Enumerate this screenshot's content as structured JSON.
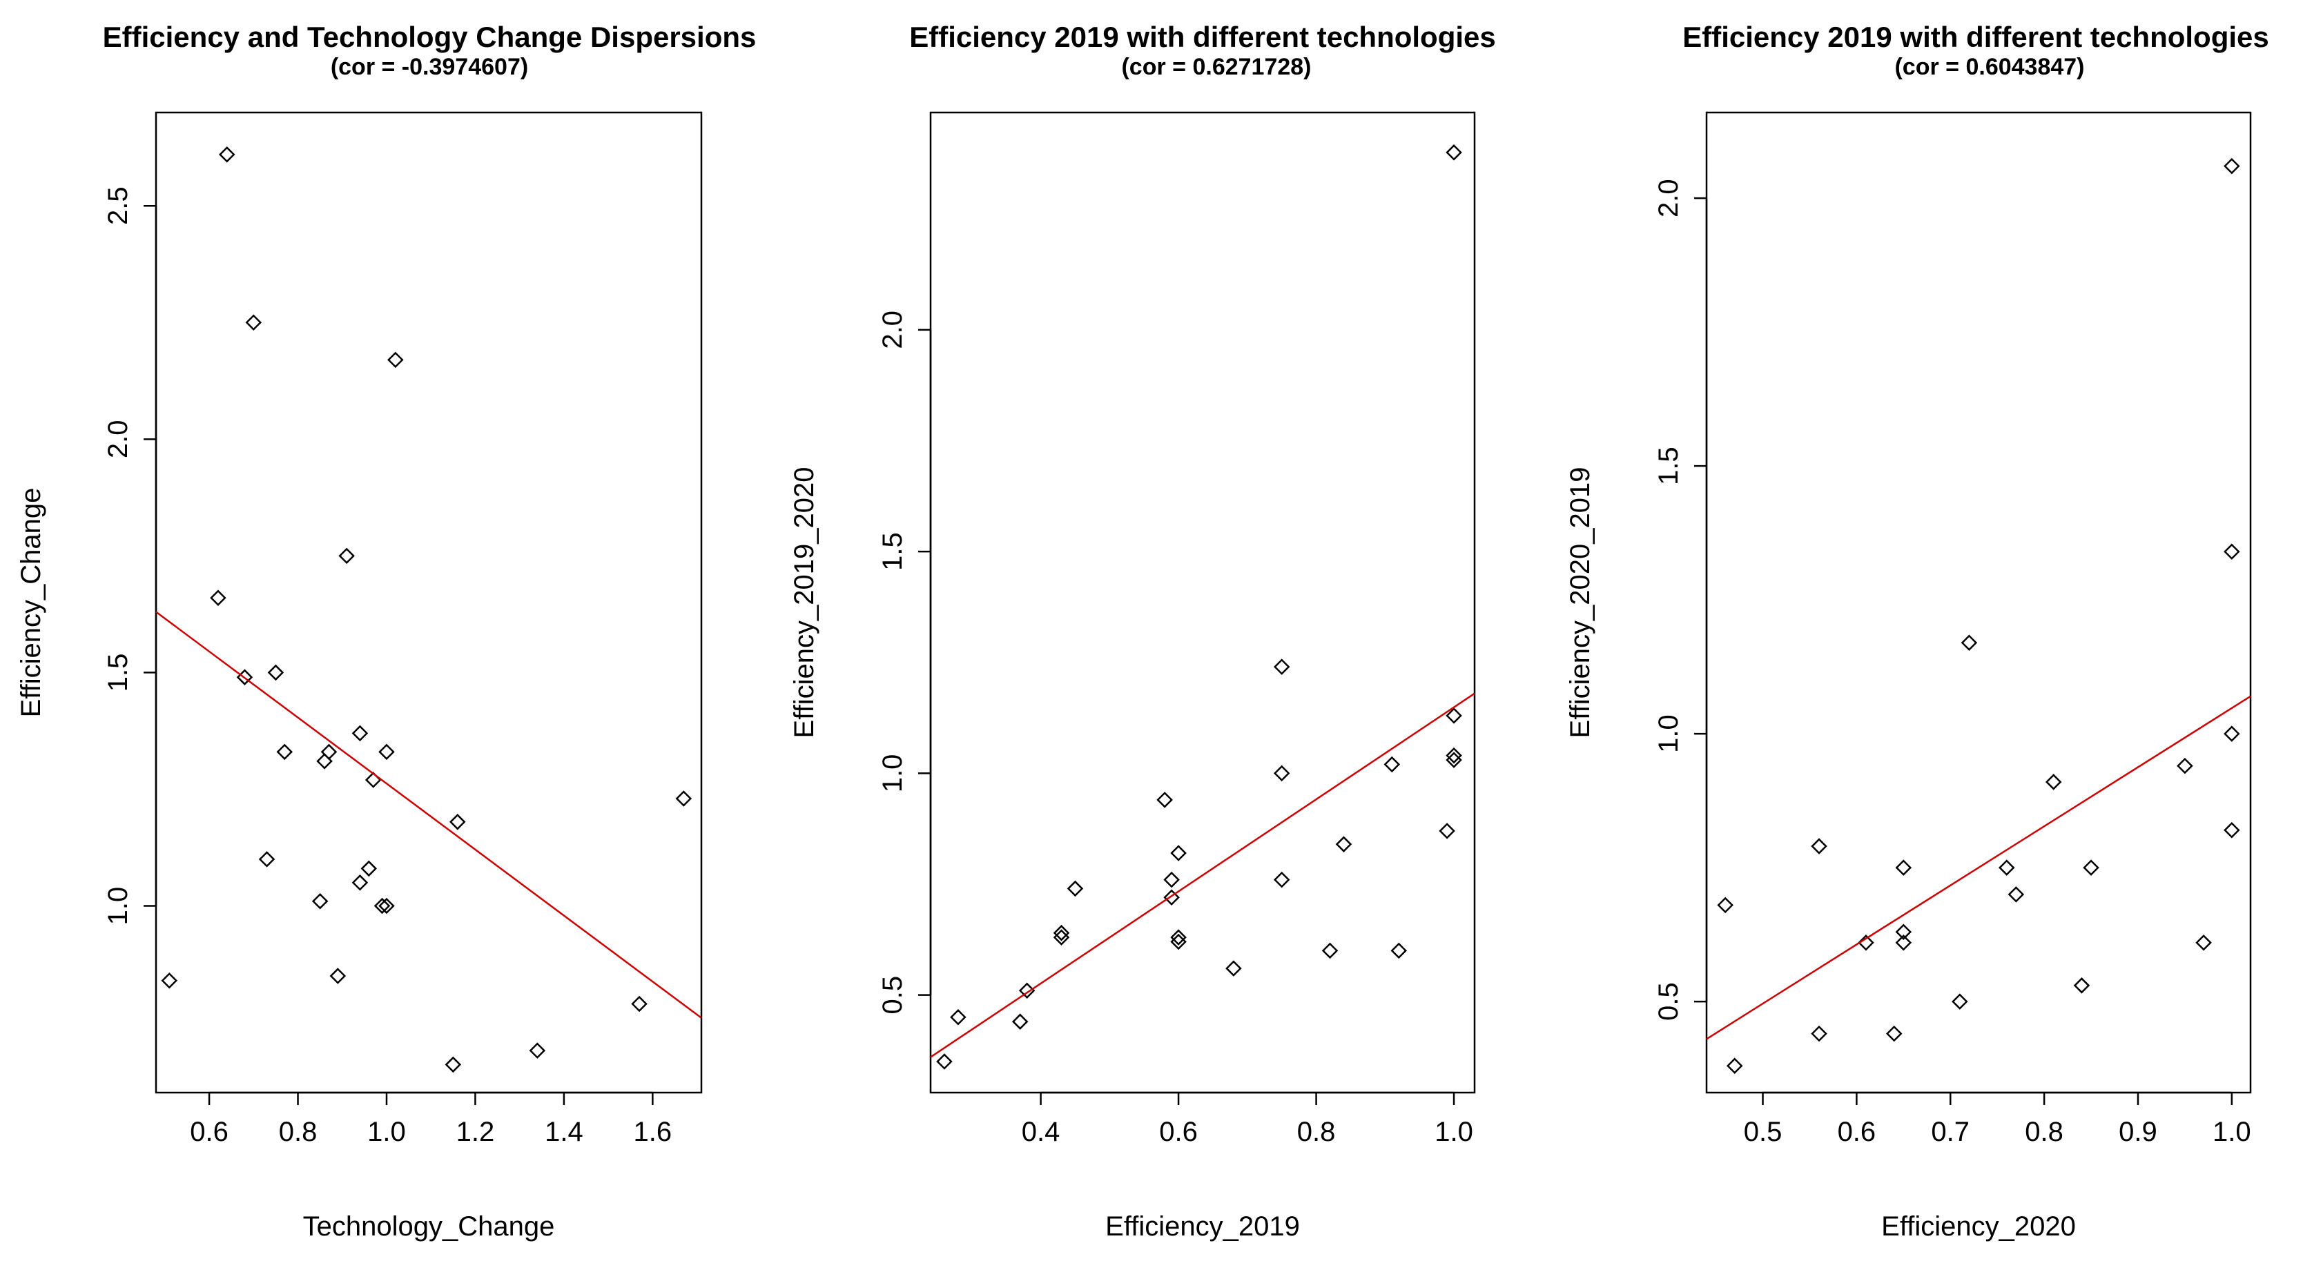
{
  "chart_data": [
    {
      "type": "scatter",
      "title": "Efficiency and Technology Change Dispersions",
      "subtitle": "(cor = -0.3974607)",
      "xlabel": "Technology_Change",
      "ylabel": "Efficiency_Change",
      "xlim": [
        0.48,
        1.71
      ],
      "ylim": [
        0.6,
        2.7
      ],
      "xticks": [
        0.6,
        0.8,
        1.0,
        1.2,
        1.4,
        1.6
      ],
      "xtick_labels": [
        "0.6",
        "0.8",
        "1.0",
        "1.2",
        "1.4",
        "1.6"
      ],
      "yticks": [
        1.0,
        1.5,
        2.0,
        2.5
      ],
      "ytick_labels": [
        "1.0",
        "1.5",
        "2.0",
        "2.5"
      ],
      "x": [
        0.64,
        0.7,
        1.02,
        0.91,
        0.62,
        0.68,
        0.75,
        0.94,
        0.77,
        0.87,
        0.86,
        1.0,
        0.97,
        1.16,
        0.73,
        0.96,
        0.94,
        0.85,
        0.99,
        1.0,
        0.89,
        0.51,
        1.67,
        1.57,
        1.34,
        1.15
      ],
      "y": [
        2.61,
        2.25,
        2.17,
        1.75,
        1.66,
        1.49,
        1.5,
        1.37,
        1.33,
        1.33,
        1.31,
        1.33,
        1.27,
        1.18,
        1.1,
        1.08,
        1.05,
        1.01,
        1.0,
        1.0,
        0.85,
        0.84,
        1.23,
        0.79,
        0.69,
        0.66
      ],
      "fit_line": {
        "color": "#cc0000",
        "x": [
          0.48,
          1.71
        ],
        "y": [
          1.63,
          0.76
        ]
      }
    },
    {
      "type": "scatter",
      "title": "Efficiency 2019 with different technologies",
      "subtitle": "(cor = 0.6271728)",
      "xlabel": "Efficiency_2019",
      "ylabel": "Efficiency_2019_2020",
      "xlim": [
        0.24,
        1.03
      ],
      "ylim": [
        0.28,
        2.49
      ],
      "xticks": [
        0.4,
        0.6,
        0.8,
        1.0
      ],
      "xtick_labels": [
        "0.4",
        "0.6",
        "0.8",
        "1.0"
      ],
      "yticks": [
        0.5,
        1.0,
        1.5,
        2.0
      ],
      "ytick_labels": [
        "0.5",
        "1.0",
        "1.5",
        "2.0"
      ],
      "x": [
        1.0,
        0.75,
        1.0,
        1.0,
        1.0,
        0.91,
        0.75,
        0.58,
        0.99,
        0.6,
        0.84,
        0.59,
        0.75,
        0.45,
        0.59,
        0.43,
        0.43,
        0.6,
        0.6,
        0.82,
        0.92,
        0.68,
        0.38,
        0.28,
        0.37,
        0.26
      ],
      "y": [
        2.4,
        1.24,
        1.13,
        1.04,
        1.03,
        1.02,
        1.0,
        0.94,
        0.87,
        0.82,
        0.84,
        0.76,
        0.76,
        0.74,
        0.72,
        0.64,
        0.63,
        0.62,
        0.63,
        0.6,
        0.6,
        0.56,
        0.51,
        0.45,
        0.44,
        0.35
      ],
      "fit_line": {
        "color": "#cc0000",
        "x": [
          0.24,
          1.03
        ],
        "y": [
          0.36,
          1.18
        ]
      }
    },
    {
      "type": "scatter",
      "title": "Efficiency 2019 with different technologies",
      "subtitle": "(cor = 0.6043847)",
      "xlabel": "Efficiency_2020",
      "ylabel": "Efficiency_2020_2019",
      "xlim": [
        0.44,
        1.02
      ],
      "ylim": [
        0.33,
        2.16
      ],
      "xticks": [
        0.5,
        0.6,
        0.7,
        0.8,
        0.9,
        1.0
      ],
      "xtick_labels": [
        "0.5",
        "0.6",
        "0.7",
        "0.8",
        "0.9",
        "1.0"
      ],
      "yticks": [
        0.5,
        1.0,
        1.5,
        2.0
      ],
      "ytick_labels": [
        "0.5",
        "1.0",
        "1.5",
        "2.0"
      ],
      "x": [
        1.0,
        1.0,
        0.72,
        1.0,
        0.95,
        0.81,
        1.0,
        0.56,
        0.76,
        0.85,
        0.65,
        0.77,
        0.46,
        0.65,
        0.61,
        0.65,
        0.97,
        0.84,
        0.71,
        0.56,
        0.64,
        0.47
      ],
      "y": [
        2.06,
        1.34,
        1.17,
        1.0,
        0.94,
        0.91,
        0.82,
        0.79,
        0.75,
        0.75,
        0.75,
        0.7,
        0.68,
        0.63,
        0.61,
        0.61,
        0.61,
        0.53,
        0.5,
        0.44,
        0.44,
        0.38
      ],
      "fit_line": {
        "color": "#cc0000",
        "x": [
          0.44,
          1.02
        ],
        "y": [
          0.43,
          1.07
        ]
      }
    }
  ]
}
